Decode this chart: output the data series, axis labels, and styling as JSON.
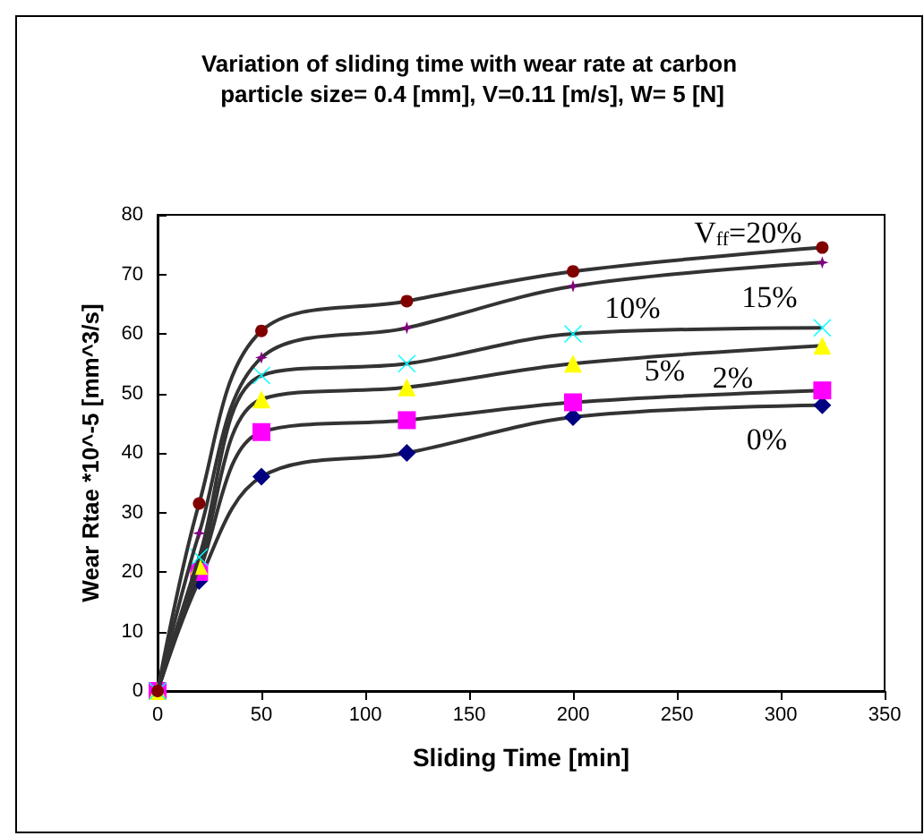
{
  "chart_data": {
    "type": "line",
    "title": "Variation of sliding time with wear rate at carbon particle size= 0.4 [mm], V=0.11 [m/s], W= 5 [N]",
    "xlabel": "Sliding Time [min]",
    "ylabel": "Wear Rtae *10^-5 [mm^3/s]",
    "x": [
      0,
      20,
      50,
      120,
      200,
      320
    ],
    "series": [
      {
        "name": "V$_{ff}$=20%",
        "color": "#800000",
        "marker": "circle",
        "values": [
          0,
          31.5,
          60.5,
          65.5,
          70.5,
          74.5
        ]
      },
      {
        "name": "15%",
        "color": "#800080",
        "marker": "star",
        "values": [
          0,
          26.5,
          56,
          61,
          68,
          72
        ]
      },
      {
        "name": "10%",
        "color": "#00ffff",
        "marker": "cross",
        "values": [
          0,
          22.5,
          53,
          55,
          60,
          61
        ]
      },
      {
        "name": "5%",
        "color": "#ffff00",
        "marker": "triangle",
        "values": [
          0,
          21,
          49,
          51,
          55,
          58
        ]
      },
      {
        "name": "2%",
        "color": "#ff00ff",
        "marker": "square",
        "values": [
          0,
          20,
          43.5,
          45.5,
          48.5,
          50.5
        ]
      },
      {
        "name": "0%",
        "color": "#000080",
        "marker": "diamond",
        "values": [
          0,
          18.5,
          36,
          40,
          46,
          48
        ]
      }
    ],
    "xlim": [
      0,
      350
    ],
    "xticks": [
      0,
      50,
      100,
      150,
      200,
      250,
      300,
      350
    ],
    "ylim": [
      0,
      80
    ],
    "yticks": [
      0,
      10,
      20,
      30,
      40,
      50,
      60,
      70,
      80
    ],
    "grid": false
  }
}
